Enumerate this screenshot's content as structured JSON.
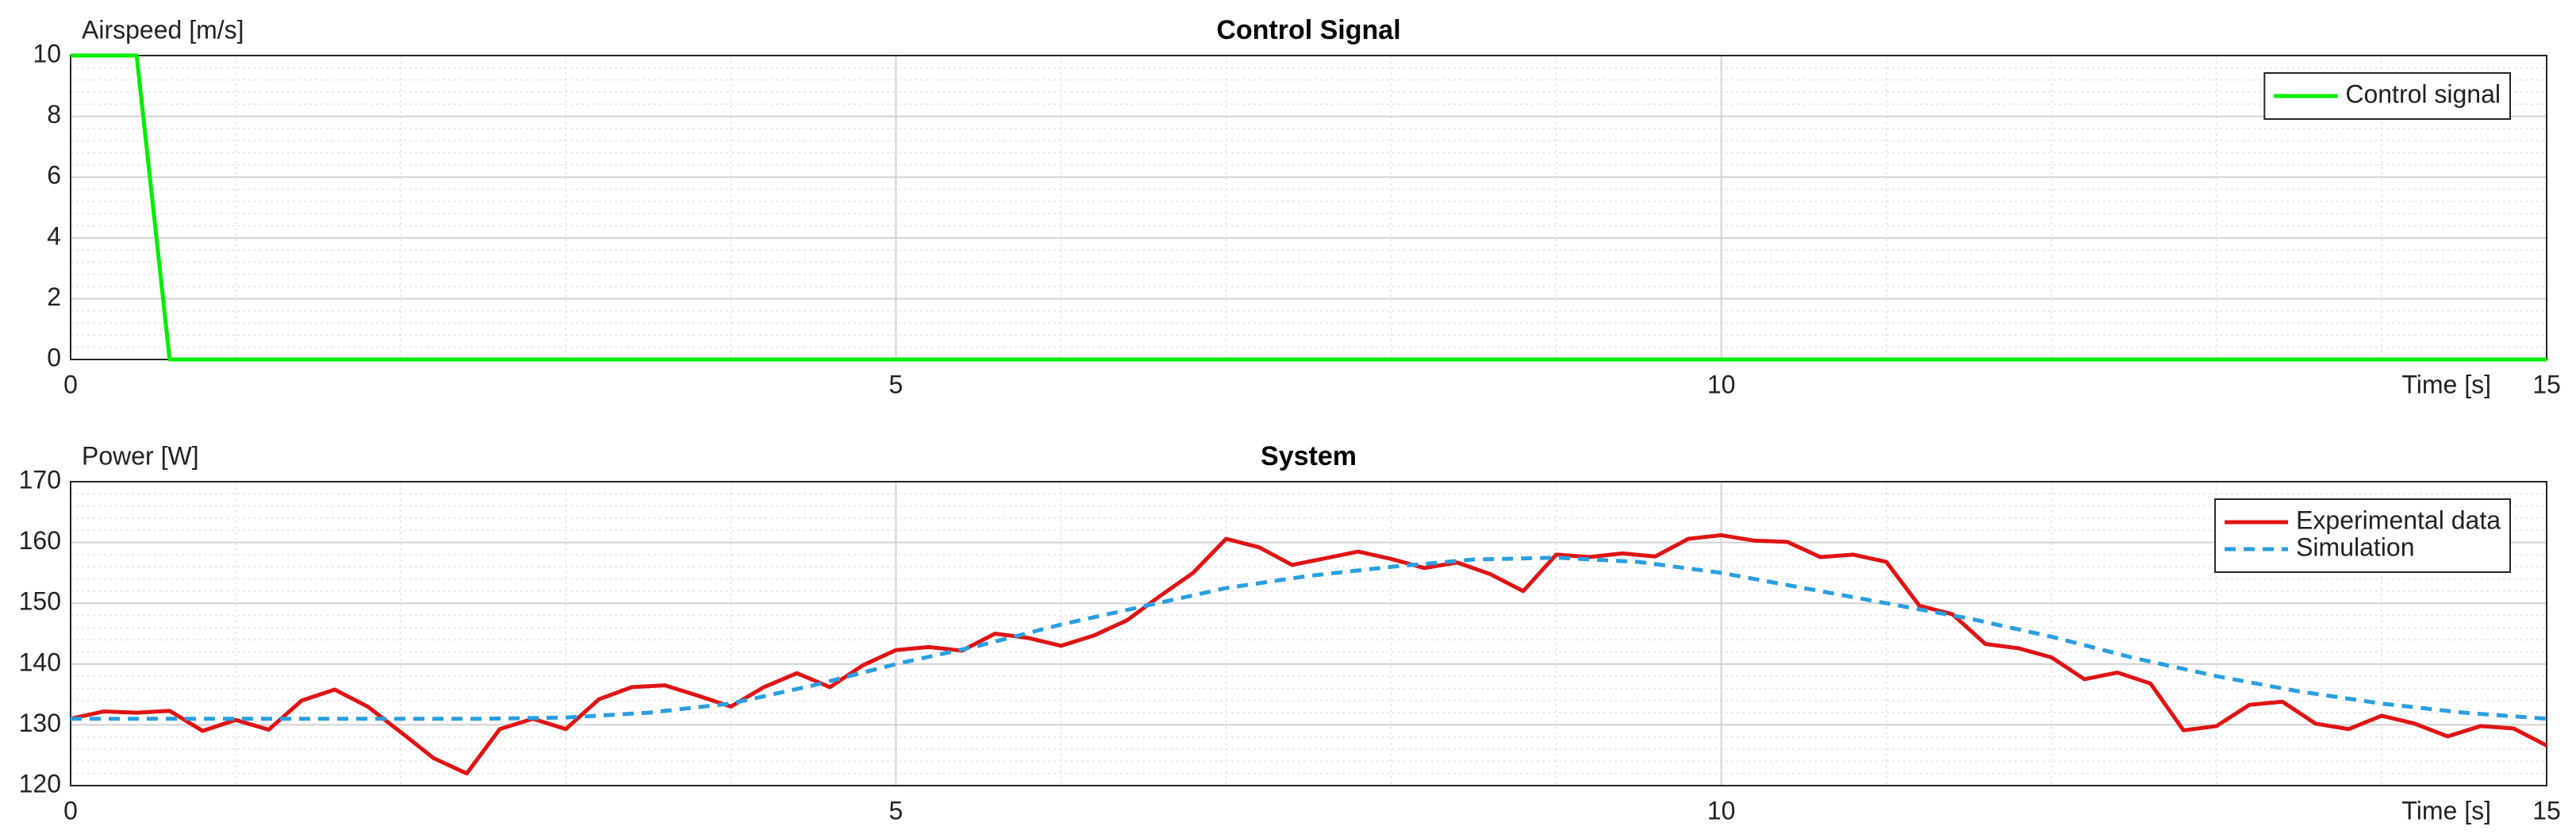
{
  "chart_data": [
    {
      "type": "line",
      "title": "Control Signal",
      "y_label": "Airspeed [m/s]",
      "x_label": "Time [s]",
      "xlim": [
        0,
        15
      ],
      "xticks": [
        0,
        5,
        10,
        15
      ],
      "ylim": [
        0,
        10
      ],
      "yticks": [
        0,
        2,
        4,
        6,
        8,
        10
      ],
      "grid": true,
      "legend": "northeast",
      "x": [
        0,
        0.4,
        0.6,
        15
      ],
      "series": [
        {
          "name": "Control signal",
          "color": "#00ee00",
          "style": "solid",
          "values": [
            10,
            10,
            0,
            0
          ]
        }
      ]
    },
    {
      "type": "line",
      "title": "System",
      "y_label": "Power [W]",
      "x_label": "Time [s]",
      "xlim": [
        0,
        15
      ],
      "xticks": [
        0,
        5,
        10,
        15
      ],
      "ylim": [
        120,
        170
      ],
      "yticks": [
        120,
        130,
        140,
        150,
        160,
        170
      ],
      "grid": true,
      "legend": "northeast",
      "series": [
        {
          "name": "Experimental data",
          "color": "#e01414",
          "style": "solid",
          "x": [
            0,
            0.2,
            0.4,
            0.6,
            0.8,
            1,
            1.2,
            1.4,
            1.6,
            1.8,
            2,
            2.2,
            2.4,
            2.6,
            2.8,
            3,
            3.2,
            3.4,
            3.6,
            3.8,
            4,
            4.2,
            4.4,
            4.6,
            4.8,
            5,
            5.2,
            5.4,
            5.6,
            5.8,
            6,
            6.2,
            6.4,
            6.6,
            6.8,
            7,
            7.2,
            7.4,
            7.6,
            7.8,
            8,
            8.2,
            8.4,
            8.6,
            8.8,
            9,
            9.2,
            9.4,
            9.6,
            9.8,
            10,
            10.2,
            10.4,
            10.6,
            10.8,
            11,
            11.2,
            11.4,
            11.6,
            11.8,
            12,
            12.2,
            12.4,
            12.6,
            12.8,
            13,
            13.2,
            13.4,
            13.6,
            13.8,
            14,
            14.2,
            14.4,
            14.6,
            14.8,
            15
          ],
          "values": [
            131,
            132.2,
            132,
            132.3,
            129,
            130.8,
            129.2,
            134,
            135.8,
            133,
            128.8,
            124.5,
            122,
            129.3,
            131,
            129.3,
            134.2,
            136.2,
            136.5,
            134.8,
            133,
            136.2,
            138.5,
            136.2,
            139.8,
            142.3,
            142.8,
            142.2,
            145,
            144.3,
            143,
            144.7,
            147.2,
            151.2,
            155,
            160.6,
            159.2,
            156.3,
            157.4,
            158.5,
            157.3,
            155.8,
            156.7,
            154.8,
            152,
            158,
            157.6,
            158.2,
            157.7,
            160.6,
            161.2,
            160.3,
            160.1,
            157.6,
            158,
            156.8,
            149.6,
            148.2,
            143.3,
            142.6,
            141.1,
            137.5,
            138.6,
            136.8,
            129.1,
            129.8,
            133.3,
            133.8,
            130.2,
            129.3,
            131.5,
            130.2,
            128.1,
            129.8,
            129.4,
            126.6
          ]
        },
        {
          "name": "Simulation",
          "color": "#2a9fe0",
          "style": "dashed",
          "x": [
            0,
            0.5,
            1,
            1.5,
            2,
            2.5,
            3,
            3.5,
            4,
            4.5,
            5,
            5.5,
            6,
            6.5,
            7,
            7.5,
            8,
            8.5,
            9,
            9.5,
            10,
            10.5,
            11,
            11.5,
            12,
            12.5,
            13,
            13.5,
            14,
            14.5,
            15
          ],
          "values": [
            131,
            131,
            131,
            131,
            131,
            131,
            131.2,
            132,
            133.5,
            136.5,
            140,
            143,
            146.5,
            149.5,
            152.5,
            154.5,
            156,
            157.2,
            157.5,
            156.8,
            155,
            152.5,
            150,
            147.5,
            144.5,
            141,
            138,
            135.5,
            133.5,
            132,
            131
          ]
        }
      ]
    }
  ]
}
